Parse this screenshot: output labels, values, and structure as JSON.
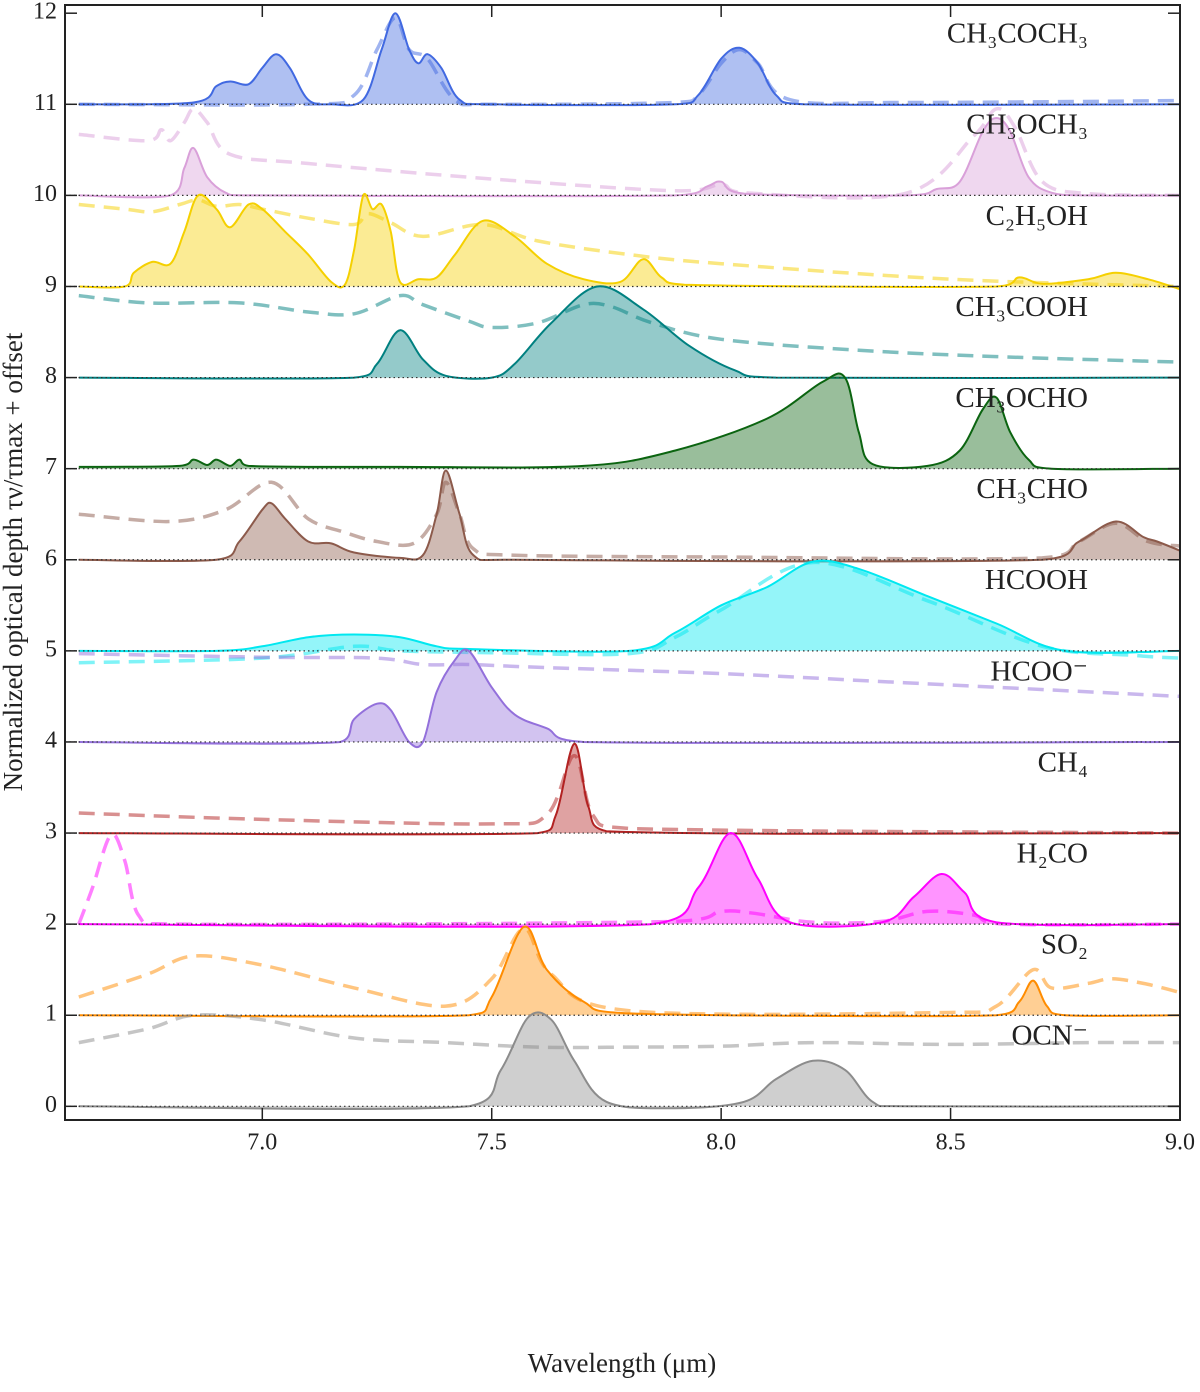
{
  "chart_data": {
    "type": "line",
    "xlabel": "Wavelength (μm)",
    "ylabel": "Normalized optical depth τν/τmax + offset",
    "xlim": [
      6.57,
      9.0
    ],
    "ylim": [
      -0.15,
      12.09
    ],
    "xticks": [
      {
        "value": 7,
        "label": "7.0"
      },
      7.5,
      {
        "value": 8,
        "label": "8.0"
      },
      8.5,
      {
        "value": 9,
        "label": "9.0"
      }
    ],
    "yticks": [
      0,
      1,
      2,
      3,
      4,
      5,
      6,
      7,
      8,
      9,
      10,
      11,
      12
    ],
    "series": [
      {
        "name": "CH₃COCH₃",
        "color": "#4169e1",
        "baseline": 11,
        "x": [
          6.6,
          6.85,
          6.9,
          6.93,
          6.97,
          7.0,
          7.03,
          7.06,
          7.1,
          7.15,
          7.22,
          7.26,
          7.29,
          7.32,
          7.34,
          7.36,
          7.39,
          7.43,
          7.5,
          7.9,
          7.95,
          8.0,
          8.04,
          8.08,
          8.12,
          8.18,
          9.0
        ],
        "values": [
          11,
          11.02,
          11.2,
          11.25,
          11.22,
          11.4,
          11.55,
          11.4,
          11.05,
          11.0,
          11.05,
          11.6,
          12.0,
          11.6,
          11.45,
          11.55,
          11.4,
          11.05,
          11.0,
          11.0,
          11.1,
          11.5,
          11.62,
          11.45,
          11.1,
          11.0,
          11.0
        ],
        "reference": {
          "x": [
            6.6,
            7.1,
            7.2,
            7.25,
            7.29,
            7.32,
            7.36,
            7.42,
            7.5,
            7.9,
            7.95,
            8.0,
            8.04,
            8.08,
            8.15,
            8.4,
            9.0
          ],
          "values": [
            11.0,
            11.0,
            11.1,
            11.6,
            11.95,
            11.6,
            11.5,
            11.05,
            11.0,
            11.02,
            11.1,
            11.45,
            11.6,
            11.45,
            11.05,
            11.02,
            11.04
          ]
        }
      },
      {
        "name": "CH₃OCH₃",
        "color": "#d9a0d9",
        "baseline": 10,
        "x": [
          6.6,
          6.8,
          6.83,
          6.85,
          6.88,
          6.92,
          6.97,
          7.9,
          7.97,
          8.0,
          8.05,
          8.4,
          8.47,
          8.52,
          8.57,
          8.6,
          8.63,
          8.67,
          8.72,
          8.8,
          9.0
        ],
        "values": [
          10,
          10.0,
          10.3,
          10.52,
          10.2,
          10.03,
          10.0,
          10,
          10.1,
          10.15,
          10.02,
          10.0,
          10.07,
          10.15,
          10.7,
          10.85,
          10.7,
          10.2,
          10.03,
          10.0,
          10.0
        ],
        "reference": {
          "x": [
            6.6,
            6.75,
            6.78,
            6.8,
            6.83,
            6.85,
            6.88,
            6.93,
            7.1,
            7.5,
            7.9,
            8.0,
            8.05,
            8.4,
            8.55,
            8.6,
            8.64,
            8.7,
            8.8,
            9.0
          ],
          "values": [
            10.67,
            10.6,
            10.72,
            10.6,
            10.8,
            10.95,
            10.8,
            10.45,
            10.35,
            10.18,
            10.05,
            10.12,
            10.03,
            10.02,
            10.65,
            10.95,
            10.75,
            10.15,
            10.02,
            10.0
          ]
        }
      },
      {
        "name": "C₂H₅OH",
        "color": "#f5d000",
        "baseline": 9,
        "x": [
          6.6,
          6.7,
          6.72,
          6.76,
          6.8,
          6.83,
          6.86,
          6.9,
          6.93,
          6.97,
          7.0,
          7.05,
          7.1,
          7.15,
          7.18,
          7.2,
          7.22,
          7.24,
          7.26,
          7.28,
          7.3,
          7.34,
          7.38,
          7.42,
          7.48,
          7.55,
          7.62,
          7.7,
          7.78,
          7.83,
          7.87,
          7.92,
          8.6,
          8.65,
          8.7,
          8.8,
          8.86,
          8.93,
          9.0
        ],
        "values": [
          9.0,
          9.0,
          9.15,
          9.27,
          9.25,
          9.6,
          10.0,
          9.85,
          9.65,
          9.9,
          9.85,
          9.6,
          9.35,
          9.05,
          9.02,
          9.4,
          10.0,
          9.85,
          9.9,
          9.6,
          9.05,
          9.08,
          9.1,
          9.35,
          9.72,
          9.55,
          9.25,
          9.08,
          9.05,
          9.3,
          9.1,
          9.02,
          9.0,
          9.1,
          9.03,
          9.08,
          9.15,
          9.08,
          8.97
        ],
        "reference": {
          "x": [
            6.6,
            6.7,
            6.76,
            6.82,
            6.86,
            6.9,
            6.95,
            7.0,
            7.1,
            7.2,
            7.23,
            7.28,
            7.35,
            7.48,
            7.6,
            7.8,
            8.0,
            8.5,
            9.0
          ],
          "values": [
            9.9,
            9.85,
            9.82,
            9.9,
            9.95,
            9.88,
            9.9,
            9.85,
            9.75,
            9.68,
            9.8,
            9.7,
            9.55,
            9.68,
            9.5,
            9.35,
            9.25,
            9.08,
            9.0
          ]
        }
      },
      {
        "name": "CH₃COOH",
        "color": "#008080",
        "baseline": 8,
        "x": [
          6.6,
          7.2,
          7.25,
          7.3,
          7.35,
          7.4,
          7.5,
          7.55,
          7.63,
          7.73,
          7.83,
          7.93,
          8.03,
          8.12,
          9.0
        ],
        "values": [
          8,
          8.0,
          8.15,
          8.52,
          8.2,
          8.02,
          8.0,
          8.15,
          8.6,
          9.0,
          8.75,
          8.35,
          8.08,
          8.0,
          8.0
        ],
        "reference": {
          "x": [
            6.6,
            6.75,
            6.95,
            7.1,
            7.2,
            7.3,
            7.35,
            7.45,
            7.5,
            7.6,
            7.7,
            7.76,
            7.85,
            8.0,
            8.3,
            8.6,
            9.0
          ],
          "values": [
            8.9,
            8.82,
            8.82,
            8.72,
            8.7,
            8.9,
            8.8,
            8.62,
            8.55,
            8.6,
            8.8,
            8.78,
            8.6,
            8.42,
            8.3,
            8.23,
            8.17
          ]
        }
      },
      {
        "name": "CH₃OCHO",
        "color": "#0b6410",
        "baseline": 7,
        "x": [
          6.6,
          6.82,
          6.85,
          6.88,
          6.9,
          6.93,
          6.95,
          6.97,
          7.3,
          7.7,
          7.9,
          8.1,
          8.22,
          8.27,
          8.3,
          8.33,
          8.45,
          8.52,
          8.57,
          8.6,
          8.63,
          8.67,
          8.72,
          9.0
        ],
        "values": [
          7.02,
          7.03,
          7.1,
          7.04,
          7.1,
          7.03,
          7.1,
          7.03,
          7.02,
          7.03,
          7.2,
          7.55,
          7.95,
          8.0,
          7.4,
          7.05,
          7.03,
          7.2,
          7.65,
          7.78,
          7.4,
          7.1,
          7.0,
          7.0
        ]
      },
      {
        "name": "CH₃CHO",
        "color": "#8c5a4b",
        "baseline": 6,
        "x": [
          6.6,
          6.9,
          6.95,
          7.0,
          7.02,
          7.05,
          7.1,
          7.15,
          7.2,
          7.3,
          7.35,
          7.38,
          7.4,
          7.43,
          7.46,
          7.55,
          8.7,
          8.78,
          8.86,
          8.92,
          8.95,
          9.0
        ],
        "values": [
          6.0,
          6.0,
          6.2,
          6.55,
          6.62,
          6.45,
          6.2,
          6.18,
          6.08,
          6.02,
          6.05,
          6.5,
          6.98,
          6.5,
          6.05,
          6.0,
          6.0,
          6.2,
          6.42,
          6.25,
          6.2,
          6.1
        ],
        "reference": {
          "x": [
            6.6,
            6.8,
            6.92,
            7.02,
            7.1,
            7.18,
            7.25,
            7.33,
            7.38,
            7.4,
            7.43,
            7.46,
            7.55,
            8.0,
            8.7,
            8.78,
            8.86,
            8.93,
            9.0
          ],
          "values": [
            6.5,
            6.42,
            6.55,
            6.85,
            6.45,
            6.3,
            6.2,
            6.18,
            6.5,
            6.85,
            6.5,
            6.12,
            6.05,
            6.03,
            6.02,
            6.2,
            6.4,
            6.2,
            6.15
          ]
        }
      },
      {
        "name": "HCOOH",
        "color": "#00e8f0",
        "baseline": 5,
        "x": [
          6.6,
          6.9,
          7.0,
          7.1,
          7.2,
          7.3,
          7.38,
          7.45,
          7.8,
          7.9,
          8.0,
          8.1,
          8.2,
          8.3,
          8.45,
          8.6,
          8.75,
          9.0
        ],
        "values": [
          5.0,
          5.0,
          5.05,
          5.15,
          5.18,
          5.15,
          5.05,
          5.02,
          5.0,
          5.2,
          5.5,
          5.7,
          5.98,
          5.9,
          5.6,
          5.3,
          5.0,
          5.0
        ],
        "reference": {
          "x": [
            6.6,
            7.0,
            7.2,
            7.3,
            7.5,
            7.8,
            7.9,
            8.0,
            8.2,
            8.45,
            8.7,
            8.9,
            9.0
          ],
          "values": [
            4.87,
            4.92,
            5.05,
            5.0,
            4.98,
            4.97,
            5.15,
            5.45,
            5.97,
            5.55,
            5.05,
            4.95,
            4.92
          ]
        }
      },
      {
        "name": "HCOO⁻",
        "color": "#9370db",
        "baseline": 4,
        "x": [
          6.6,
          7.17,
          7.2,
          7.25,
          7.28,
          7.32,
          7.35,
          7.38,
          7.42,
          7.45,
          7.5,
          7.55,
          7.62,
          7.7,
          9.0
        ],
        "values": [
          4,
          4.0,
          4.25,
          4.42,
          4.35,
          4.0,
          4.0,
          4.55,
          4.9,
          5.0,
          4.6,
          4.3,
          4.15,
          4.0,
          4.0
        ],
        "reference": {
          "x": [
            6.6,
            7.0,
            7.25,
            7.35,
            7.45,
            7.6,
            8.0,
            8.4,
            9.0
          ],
          "values": [
            4.97,
            4.93,
            4.92,
            4.85,
            4.85,
            4.82,
            4.75,
            4.65,
            4.5
          ]
        }
      },
      {
        "name": "CH₄",
        "color": "#b22222",
        "baseline": 3,
        "x": [
          6.6,
          7.6,
          7.64,
          7.68,
          7.71,
          7.75,
          9.0
        ],
        "values": [
          3,
          3.0,
          3.2,
          3.98,
          3.3,
          3.02,
          3.0
        ],
        "reference": {
          "x": [
            6.6,
            7.0,
            7.5,
            7.62,
            7.68,
            7.72,
            7.8,
            9.0
          ],
          "values": [
            3.22,
            3.15,
            3.1,
            3.2,
            3.85,
            3.2,
            3.05,
            3.0
          ]
        }
      },
      {
        "name": "H₂CO",
        "color": "#ff00ff",
        "baseline": 2,
        "x": [
          6.6,
          7.85,
          7.95,
          8.02,
          8.08,
          8.15,
          8.35,
          8.42,
          8.48,
          8.53,
          8.6,
          9.0
        ],
        "values": [
          2,
          2.0,
          2.4,
          3.0,
          2.5,
          2.02,
          2.02,
          2.3,
          2.55,
          2.35,
          2.02,
          2.0
        ],
        "reference": {
          "x": [
            6.6,
            6.63,
            6.67,
            6.7,
            6.73,
            6.8,
            7.9,
            8.0,
            8.07,
            8.2,
            8.35,
            8.45,
            8.55,
            8.62,
            9.0
          ],
          "values": [
            2.0,
            2.4,
            2.98,
            2.7,
            2.1,
            2.0,
            2.03,
            2.14,
            2.12,
            2.02,
            2.03,
            2.14,
            2.1,
            2.0,
            2.0
          ]
        }
      },
      {
        "name": "SO₂",
        "color": "#ff8c00",
        "baseline": 1,
        "x": [
          6.6,
          7.45,
          7.5,
          7.57,
          7.62,
          7.7,
          7.8,
          8.6,
          8.65,
          8.68,
          8.71,
          8.75,
          9.0
        ],
        "values": [
          1,
          1.0,
          1.2,
          1.97,
          1.5,
          1.15,
          1.02,
          1.0,
          1.15,
          1.38,
          1.1,
          1.0,
          1.0
        ],
        "reference": {
          "x": [
            6.6,
            6.75,
            6.85,
            7.0,
            7.2,
            7.4,
            7.5,
            7.57,
            7.63,
            7.8,
            8.5,
            8.6,
            8.68,
            8.72,
            8.8,
            8.85,
            8.92,
            9.0
          ],
          "values": [
            1.2,
            1.45,
            1.65,
            1.55,
            1.3,
            1.1,
            1.4,
            1.95,
            1.45,
            1.05,
            1.03,
            1.1,
            1.5,
            1.3,
            1.35,
            1.4,
            1.35,
            1.25
          ]
        }
      },
      {
        "name": "OCN⁻",
        "color": "#8c8c8c",
        "baseline": 0,
        "x": [
          6.6,
          7.45,
          7.52,
          7.58,
          7.63,
          7.68,
          7.75,
          7.9,
          8.05,
          8.12,
          8.2,
          8.27,
          8.33,
          8.4,
          9.0
        ],
        "values": [
          0,
          0.0,
          0.4,
          0.98,
          0.95,
          0.5,
          0.05,
          -0.02,
          0.05,
          0.3,
          0.5,
          0.4,
          0.05,
          0.0,
          0.0
        ],
        "reference": {
          "x": [
            6.6,
            6.75,
            6.85,
            7.0,
            7.2,
            7.4,
            7.6,
            7.8,
            8.0,
            8.2,
            8.5,
            8.8,
            9.0
          ],
          "values": [
            0.7,
            0.85,
            1.0,
            0.95,
            0.75,
            0.7,
            0.65,
            0.65,
            0.66,
            0.7,
            0.68,
            0.7,
            0.7
          ]
        }
      }
    ]
  }
}
